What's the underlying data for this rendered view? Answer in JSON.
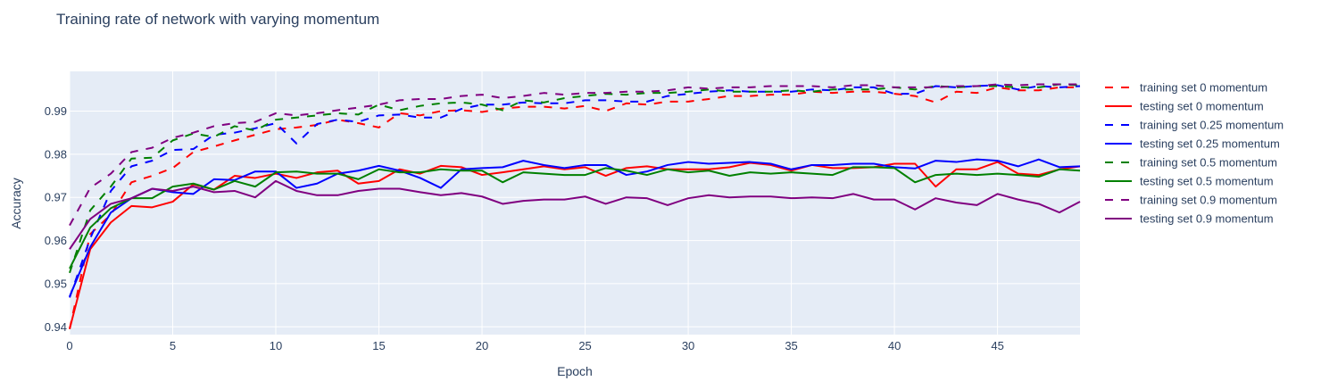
{
  "chart_data": {
    "type": "line",
    "title": "Training rate of network with varying momentum",
    "xlabel": "Epoch",
    "ylabel": "Accuracy",
    "xlim": [
      0,
      49
    ],
    "ylim": [
      0.9382,
      0.9992
    ],
    "x_ticks": [
      0,
      5,
      10,
      15,
      20,
      25,
      30,
      35,
      40,
      45
    ],
    "y_ticks": [
      0.94,
      0.95,
      0.96,
      0.97,
      0.98,
      0.99
    ],
    "x_tick_labels": [
      "0",
      "5",
      "10",
      "15",
      "20",
      "25",
      "30",
      "35",
      "40",
      "45"
    ],
    "y_tick_labels": [
      "0.94",
      "0.95",
      "0.96",
      "0.97",
      "0.98",
      "0.99"
    ],
    "grid": true,
    "legend_position": "right",
    "background_color": "#e5ecf6",
    "x": [
      0,
      1,
      2,
      3,
      4,
      5,
      6,
      7,
      8,
      9,
      10,
      11,
      12,
      13,
      14,
      15,
      16,
      17,
      18,
      19,
      20,
      21,
      22,
      23,
      24,
      25,
      26,
      27,
      28,
      29,
      30,
      31,
      32,
      33,
      34,
      35,
      36,
      37,
      38,
      39,
      40,
      41,
      42,
      43,
      44,
      45,
      46,
      47,
      48,
      49
    ],
    "series": [
      {
        "name": "training set 0 momentum",
        "color": "#ff0000",
        "dash": "dash",
        "values": [
          0.9395,
          0.9615,
          0.966,
          0.9735,
          0.975,
          0.9768,
          0.9805,
          0.9818,
          0.9832,
          0.9845,
          0.9858,
          0.9862,
          0.9868,
          0.988,
          0.9872,
          0.9862,
          0.9895,
          0.989,
          0.99,
          0.9902,
          0.9898,
          0.9906,
          0.991,
          0.991,
          0.9906,
          0.9912,
          0.99,
          0.9918,
          0.9915,
          0.9922,
          0.9922,
          0.9928,
          0.9935,
          0.9935,
          0.9938,
          0.9938,
          0.9945,
          0.9942,
          0.9945,
          0.9945,
          0.994,
          0.9935,
          0.992,
          0.9945,
          0.9942,
          0.9955,
          0.9948,
          0.9948,
          0.9955,
          0.9955
        ]
      },
      {
        "name": "testing set 0 momentum",
        "color": "#ff0000",
        "dash": "solid",
        "values": [
          0.9395,
          0.958,
          0.9642,
          0.968,
          0.9677,
          0.969,
          0.973,
          0.9718,
          0.975,
          0.9745,
          0.9755,
          0.9745,
          0.9758,
          0.9762,
          0.9732,
          0.9738,
          0.9765,
          0.9755,
          0.9773,
          0.977,
          0.9752,
          0.9758,
          0.9765,
          0.9772,
          0.9765,
          0.977,
          0.975,
          0.9768,
          0.9772,
          0.9765,
          0.9765,
          0.9765,
          0.977,
          0.978,
          0.9775,
          0.9762,
          0.9775,
          0.9768,
          0.9768,
          0.977,
          0.9778,
          0.9778,
          0.9725,
          0.9765,
          0.9765,
          0.9782,
          0.9755,
          0.9752,
          0.9765,
          0.9772
        ]
      },
      {
        "name": "training set 0.25 momentum",
        "color": "#0000ff",
        "dash": "dash",
        "values": [
          0.9468,
          0.9605,
          0.9715,
          0.9772,
          0.9785,
          0.981,
          0.9812,
          0.9845,
          0.985,
          0.986,
          0.9872,
          0.9825,
          0.987,
          0.988,
          0.9875,
          0.989,
          0.9892,
          0.9885,
          0.9885,
          0.9905,
          0.9915,
          0.9915,
          0.992,
          0.9918,
          0.9918,
          0.9925,
          0.9925,
          0.9922,
          0.9922,
          0.9935,
          0.994,
          0.9945,
          0.9948,
          0.9945,
          0.9945,
          0.9945,
          0.995,
          0.9948,
          0.9955,
          0.9955,
          0.994,
          0.994,
          0.9958,
          0.9955,
          0.9958,
          0.996,
          0.995,
          0.9958,
          0.9955,
          0.9958
        ]
      },
      {
        "name": "testing set 0.25 momentum",
        "color": "#0000ff",
        "dash": "solid",
        "values": [
          0.947,
          0.9585,
          0.9665,
          0.9698,
          0.972,
          0.9712,
          0.9708,
          0.9742,
          0.974,
          0.976,
          0.976,
          0.9722,
          0.9732,
          0.9755,
          0.9762,
          0.9773,
          0.9762,
          0.9745,
          0.9722,
          0.9765,
          0.9768,
          0.977,
          0.9785,
          0.9775,
          0.9768,
          0.9775,
          0.9775,
          0.9752,
          0.976,
          0.9775,
          0.9782,
          0.9778,
          0.978,
          0.9782,
          0.9778,
          0.9765,
          0.9775,
          0.9775,
          0.9778,
          0.9778,
          0.977,
          0.9767,
          0.9785,
          0.9782,
          0.9788,
          0.9785,
          0.9772,
          0.9788,
          0.977,
          0.9772
        ]
      },
      {
        "name": "training set 0.5 momentum",
        "color": "#008000",
        "dash": "dash",
        "values": [
          0.9525,
          0.967,
          0.9725,
          0.979,
          0.9792,
          0.9832,
          0.9848,
          0.984,
          0.9865,
          0.9855,
          0.988,
          0.9885,
          0.989,
          0.9895,
          0.9892,
          0.9915,
          0.9902,
          0.9912,
          0.9918,
          0.992,
          0.9915,
          0.9902,
          0.9925,
          0.992,
          0.993,
          0.9935,
          0.994,
          0.9938,
          0.9942,
          0.9942,
          0.9945,
          0.995,
          0.9945,
          0.9945,
          0.9945,
          0.9948,
          0.9945,
          0.995,
          0.995,
          0.995,
          0.9955,
          0.995,
          0.9958,
          0.9955,
          0.9958,
          0.9958,
          0.9955,
          0.9955,
          0.9962,
          0.996
        ]
      },
      {
        "name": "testing set 0.5 momentum",
        "color": "#008000",
        "dash": "solid",
        "values": [
          0.9535,
          0.963,
          0.9675,
          0.9698,
          0.9698,
          0.9725,
          0.9732,
          0.9718,
          0.9738,
          0.9725,
          0.9758,
          0.976,
          0.9755,
          0.9755,
          0.9742,
          0.9765,
          0.9758,
          0.9758,
          0.9765,
          0.9762,
          0.9762,
          0.9735,
          0.9758,
          0.9755,
          0.9752,
          0.9752,
          0.9768,
          0.9762,
          0.9752,
          0.9765,
          0.9758,
          0.9762,
          0.975,
          0.9758,
          0.9755,
          0.9758,
          0.9755,
          0.9752,
          0.977,
          0.977,
          0.9768,
          0.9735,
          0.9752,
          0.9755,
          0.9752,
          0.9755,
          0.9752,
          0.9748,
          0.9765,
          0.9762
        ]
      },
      {
        "name": "training set 0.9 momentum",
        "color": "#800080",
        "dash": "dash",
        "values": [
          0.9635,
          0.9722,
          0.9755,
          0.9805,
          0.9815,
          0.9838,
          0.985,
          0.9865,
          0.9872,
          0.9875,
          0.9895,
          0.989,
          0.9895,
          0.9902,
          0.9908,
          0.9915,
          0.9925,
          0.9928,
          0.9928,
          0.9935,
          0.9938,
          0.993,
          0.9935,
          0.9942,
          0.9938,
          0.9942,
          0.9942,
          0.9945,
          0.9945,
          0.9948,
          0.9955,
          0.9952,
          0.9955,
          0.9955,
          0.9958,
          0.9958,
          0.9958,
          0.9955,
          0.996,
          0.996,
          0.9955,
          0.9955,
          0.9955,
          0.9958,
          0.9958,
          0.9962,
          0.996,
          0.9962,
          0.9962,
          0.9962
        ]
      },
      {
        "name": "testing set 0.9 momentum",
        "color": "#800080",
        "dash": "solid",
        "values": [
          0.958,
          0.965,
          0.9685,
          0.9698,
          0.972,
          0.9715,
          0.9725,
          0.9712,
          0.9715,
          0.97,
          0.9738,
          0.9715,
          0.9705,
          0.9705,
          0.9715,
          0.972,
          0.972,
          0.9712,
          0.9705,
          0.971,
          0.9702,
          0.9685,
          0.9692,
          0.9695,
          0.9695,
          0.9702,
          0.9685,
          0.97,
          0.9698,
          0.9682,
          0.9698,
          0.9705,
          0.97,
          0.9702,
          0.9702,
          0.9698,
          0.97,
          0.9698,
          0.9708,
          0.9695,
          0.9695,
          0.9672,
          0.9698,
          0.9688,
          0.9682,
          0.9708,
          0.9695,
          0.9685,
          0.9665,
          0.969
        ]
      }
    ]
  }
}
